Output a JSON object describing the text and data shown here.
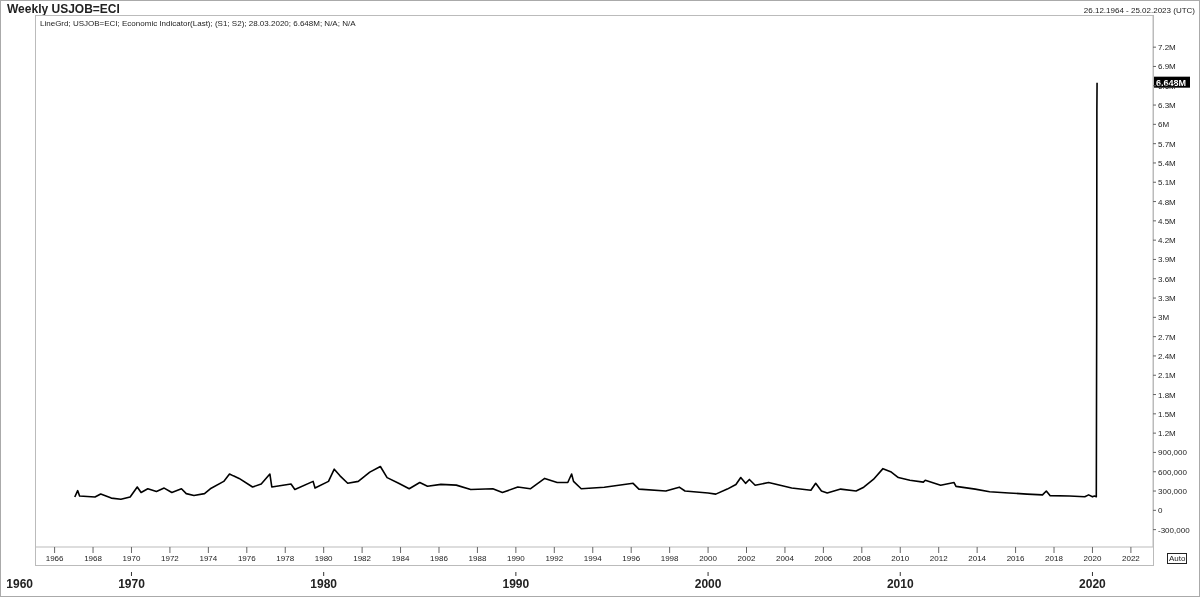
{
  "chart_data": {
    "type": "line",
    "title": "Weekly USJOB=ECI",
    "subtitle": "LineGrd; USJOB=ECI; Economic Indicator(Last); (S1; S2); 28.03.2020; 6.648M; N/A; N/A",
    "annotations": [
      "26.12.1964 - 25.02.2023 (UTC)",
      "Auto",
      "1960",
      "6.648M"
    ],
    "x": [
      1967.05,
      1967.2,
      1967.3,
      1968.1,
      1968.4,
      1968.95,
      1969.45,
      1969.93,
      1970.3,
      1970.5,
      1970.85,
      1971.3,
      1971.7,
      1972.1,
      1972.6,
      1972.85,
      1973.25,
      1973.8,
      1974.1,
      1974.8,
      1975.1,
      1975.3,
      1975.6,
      1976.3,
      1976.75,
      1977.2,
      1977.3,
      1978.3,
      1978.5,
      1979.45,
      1979.55,
      1980.25,
      1980.55,
      1980.85,
      1981.25,
      1981.8,
      1982.4,
      1982.95,
      1983.3,
      1983.9,
      1984.45,
      1985.0,
      1985.4,
      1986.1,
      1986.9,
      1987.65,
      1988.8,
      1989.3,
      1990.1,
      1990.75,
      1991.5,
      1992.15,
      1992.7,
      1992.9,
      1993.0,
      1993.4,
      1994.6,
      1996.1,
      1996.4,
      1997.8,
      1998.5,
      1998.8,
      2000.0,
      2000.4,
      2001.0,
      2001.45,
      2001.7,
      2001.95,
      2002.15,
      2002.45,
      2003.15,
      2003.75,
      2004.35,
      2005.35,
      2005.6,
      2005.9,
      2006.2,
      2006.9,
      2007.7,
      2008.1,
      2008.6,
      2009.1,
      2009.5,
      2009.9,
      2010.5,
      2011.2,
      2011.3,
      2012.1,
      2012.8,
      2012.9,
      2013.9,
      2014.65,
      2015.65,
      2016.6,
      2017.4,
      2017.6,
      2017.8,
      2018.8,
      2019.6,
      2019.8,
      2020.0,
      2020.1,
      2020.2,
      2020.22,
      2020.23,
      2020.24
    ],
    "series": [
      {
        "color": "#000000",
        "values": [
          207000,
          306000,
          224000,
          207000,
          255000,
          190000,
          173000,
          207000,
          363000,
          277000,
          335000,
          294000,
          346000,
          277000,
          335000,
          260000,
          231000,
          260000,
          335000,
          450000,
          565000,
          536000,
          496000,
          363000,
          410000,
          565000,
          363000,
          410000,
          323000,
          450000,
          346000,
          450000,
          640000,
          536000,
          421000,
          450000,
          594000,
          681000,
          508000,
          421000,
          335000,
          433000,
          375000,
          404000,
          392000,
          323000,
          335000,
          277000,
          363000,
          335000,
          496000,
          433000,
          433000,
          565000,
          450000,
          335000,
          360000,
          420000,
          330000,
          300000,
          360000,
          300000,
          270000,
          252000,
          330000,
          402000,
          510000,
          420000,
          480000,
          390000,
          432000,
          390000,
          348000,
          312000,
          420000,
          300000,
          270000,
          330000,
          300000,
          360000,
          480000,
          648000,
          600000,
          510000,
          468000,
          438000,
          468000,
          390000,
          432000,
          372000,
          330000,
          288000,
          270000,
          252000,
          240000,
          300000,
          228000,
          222000,
          210000,
          240000,
          210000,
          222000,
          211000,
          2925000,
          6210000,
          6648000
        ]
      }
    ],
    "xlim": [
      1964.98,
      2023.15
    ],
    "xticks": [
      1966,
      1968,
      1970,
      1972,
      1974,
      1976,
      1978,
      1980,
      1982,
      1984,
      1986,
      1988,
      1990,
      1992,
      1994,
      1996,
      1998,
      2000,
      2002,
      2004,
      2006,
      2008,
      2010,
      2012,
      2014,
      2016,
      2018,
      2020,
      2022
    ],
    "x2lim": [
      1964.98,
      2023.15
    ],
    "x2ticks": [
      1970,
      1980,
      1990,
      2000,
      2010,
      2020
    ],
    "ylim": [
      -570000,
      7700000
    ],
    "yticks": [
      {
        "value": -300000,
        "label": "-300,000"
      },
      {
        "value": 0,
        "label": "0"
      },
      {
        "value": 300000,
        "label": "300,000"
      },
      {
        "value": 600000,
        "label": "600,000"
      },
      {
        "value": 900000,
        "label": "900,000"
      },
      {
        "value": 1200000,
        "label": "1.2M"
      },
      {
        "value": 1500000,
        "label": "1.5M"
      },
      {
        "value": 1800000,
        "label": "1.8M"
      },
      {
        "value": 2100000,
        "label": "2.1M"
      },
      {
        "value": 2400000,
        "label": "2.4M"
      },
      {
        "value": 2700000,
        "label": "2.7M"
      },
      {
        "value": 3000000,
        "label": "3M"
      },
      {
        "value": 3300000,
        "label": "3.3M"
      },
      {
        "value": 3600000,
        "label": "3.6M"
      },
      {
        "value": 3900000,
        "label": "3.9M"
      },
      {
        "value": 4200000,
        "label": "4.2M"
      },
      {
        "value": 4500000,
        "label": "4.5M"
      },
      {
        "value": 4800000,
        "label": "4.8M"
      },
      {
        "value": 5100000,
        "label": "5.1M"
      },
      {
        "value": 5400000,
        "label": "5.4M"
      },
      {
        "value": 5700000,
        "label": "5.7M"
      },
      {
        "value": 6000000,
        "label": "6M"
      },
      {
        "value": 6300000,
        "label": "6.3M"
      },
      {
        "value": 6600000,
        "label": "6.6M"
      },
      {
        "value": 6900000,
        "label": "6.9M"
      },
      {
        "value": 7200000,
        "label": "7.2M"
      }
    ]
  }
}
